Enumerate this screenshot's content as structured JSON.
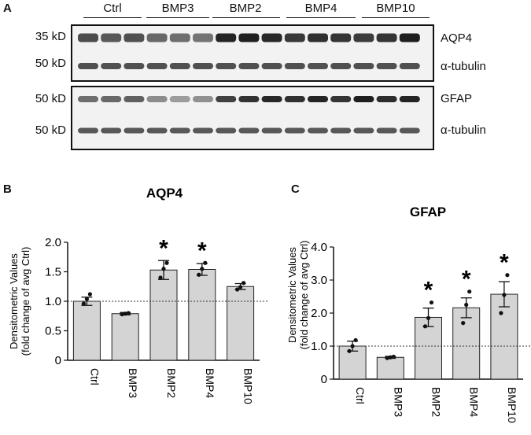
{
  "panel_a": {
    "letter": "A",
    "groups": [
      "Ctrl",
      "BMP3",
      "BMP2",
      "BMP4",
      "BMP10"
    ],
    "blots": [
      {
        "mw": "35 kD",
        "name": "AQP4",
        "intensity": [
          0.72,
          0.66,
          0.7,
          0.58,
          0.55,
          0.52,
          0.92,
          0.94,
          0.9,
          0.82,
          0.86,
          0.84,
          0.8,
          0.84,
          0.95
        ]
      },
      {
        "mw": "50 kD",
        "name": "α-tubulin",
        "intensity": [
          0.7,
          0.7,
          0.7,
          0.7,
          0.7,
          0.7,
          0.7,
          0.7,
          0.7,
          0.7,
          0.7,
          0.7,
          0.7,
          0.7,
          0.7
        ]
      },
      {
        "mw": "50 kD",
        "name": "GFAP",
        "intensity": [
          0.55,
          0.58,
          0.62,
          0.4,
          0.32,
          0.38,
          0.78,
          0.85,
          0.9,
          0.86,
          0.92,
          0.84,
          0.95,
          0.88,
          0.92
        ]
      },
      {
        "mw": "50 kD",
        "name": "α-tubulin",
        "intensity": [
          0.66,
          0.66,
          0.66,
          0.66,
          0.66,
          0.66,
          0.66,
          0.66,
          0.66,
          0.66,
          0.66,
          0.66,
          0.66,
          0.66,
          0.66
        ]
      }
    ]
  },
  "chart_data": [
    {
      "panel": "B",
      "type": "bar",
      "title": "AQP4",
      "ylabel_line1": "Densitometric Values",
      "ylabel_line2": "(fold change of avg Ctrl)",
      "categories": [
        "Ctrl",
        "BMP3",
        "BMP2",
        "BMP4",
        "BMP10"
      ],
      "values": [
        1.0,
        0.79,
        1.53,
        1.54,
        1.25
      ],
      "errors": [
        0.07,
        0.02,
        0.16,
        0.1,
        0.05
      ],
      "points": [
        [
          0.96,
          1.04,
          1.12
        ],
        [
          0.78,
          0.79,
          0.8
        ],
        [
          1.4,
          1.55,
          1.65
        ],
        [
          1.45,
          1.55,
          1.65
        ],
        [
          1.2,
          1.24,
          1.31
        ]
      ],
      "significant": [
        false,
        false,
        true,
        true,
        false
      ],
      "sig_mark": "*",
      "ylim": [
        0,
        2.0
      ],
      "yticks": [
        "0",
        "0.5",
        "1.0",
        "1.5",
        "2.0"
      ],
      "reference_line": 1.0
    },
    {
      "panel": "C",
      "type": "bar",
      "title": "GFAP",
      "ylabel_line1": "Densitometric Values",
      "ylabel_line2": "(fold change of avg Ctrl)",
      "categories": [
        "Ctrl",
        "BMP3",
        "BMP2",
        "BMP4",
        "BMP10"
      ],
      "values": [
        1.0,
        0.66,
        1.87,
        2.16,
        2.57
      ],
      "errors": [
        0.15,
        0.03,
        0.28,
        0.3,
        0.38
      ],
      "points": [
        [
          0.85,
          1.0,
          1.18
        ],
        [
          0.64,
          0.66,
          0.68
        ],
        [
          1.6,
          1.85,
          2.32
        ],
        [
          1.7,
          2.25,
          2.65
        ],
        [
          2.0,
          2.55,
          3.15
        ]
      ],
      "significant": [
        false,
        false,
        true,
        true,
        true
      ],
      "sig_mark": "*",
      "ylim": [
        0,
        4.0
      ],
      "yticks": [
        "0",
        "1.0",
        "2.0",
        "3.0",
        "4.0"
      ],
      "reference_line": 1.0
    }
  ]
}
